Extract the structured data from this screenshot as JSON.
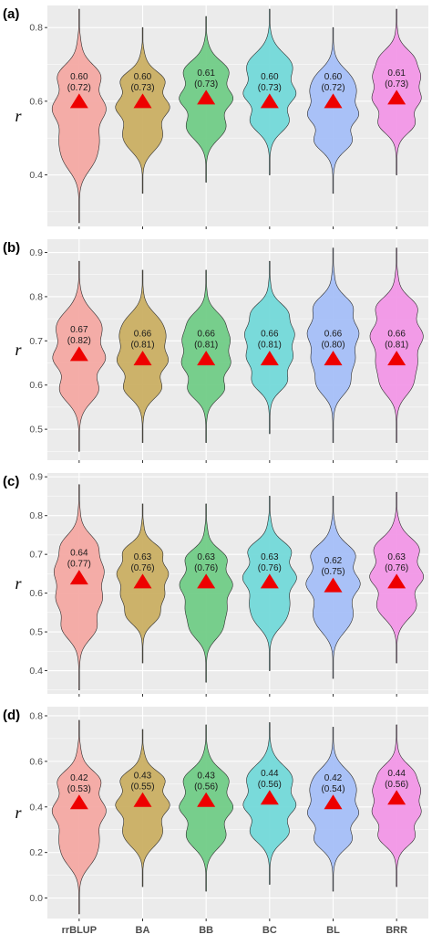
{
  "chart_data": [
    {
      "type": "violin",
      "panel_label": "(a)",
      "ylabel": "r",
      "yticks": [
        "0.4",
        "0.6",
        "0.8"
      ],
      "ylim": [
        0.26,
        0.86
      ],
      "categories": [
        "rrBLUP",
        "BA",
        "BB",
        "BC",
        "BL",
        "BRR"
      ],
      "means": [
        0.6,
        0.6,
        0.61,
        0.6,
        0.6,
        0.61
      ],
      "labels_top": [
        "0.60",
        "0.60",
        "0.61",
        "0.60",
        "0.60",
        "0.61"
      ],
      "labels_bottom": [
        "(0.72)",
        "(0.73)",
        "(0.73)",
        "(0.73)",
        "(0.72)",
        "(0.73)"
      ],
      "ranges": [
        [
          0.27,
          0.85
        ],
        [
          0.35,
          0.8
        ],
        [
          0.38,
          0.83
        ],
        [
          0.4,
          0.85
        ],
        [
          0.35,
          0.8
        ],
        [
          0.4,
          0.85
        ]
      ]
    },
    {
      "type": "violin",
      "panel_label": "(b)",
      "ylabel": "r",
      "yticks": [
        "0.5",
        "0.6",
        "0.7",
        "0.8",
        "0.9"
      ],
      "ylim": [
        0.43,
        0.93
      ],
      "categories": [
        "rrBLUP",
        "BA",
        "BB",
        "BC",
        "BL",
        "BRR"
      ],
      "means": [
        0.67,
        0.66,
        0.66,
        0.66,
        0.66,
        0.66
      ],
      "labels_top": [
        "0.67",
        "0.66",
        "0.66",
        "0.66",
        "0.66",
        "0.66"
      ],
      "labels_bottom": [
        "(0.82)",
        "(0.81)",
        "(0.81)",
        "(0.81)",
        "(0.80)",
        "(0.81)"
      ],
      "ranges": [
        [
          0.45,
          0.88
        ],
        [
          0.47,
          0.86
        ],
        [
          0.47,
          0.86
        ],
        [
          0.49,
          0.88
        ],
        [
          0.47,
          0.91
        ],
        [
          0.47,
          0.91
        ]
      ]
    },
    {
      "type": "violin",
      "panel_label": "(c)",
      "ylabel": "r",
      "yticks": [
        "0.4",
        "0.5",
        "0.6",
        "0.7",
        "0.8",
        "0.9"
      ],
      "ylim": [
        0.34,
        0.91
      ],
      "categories": [
        "rrBLUP",
        "BA",
        "BB",
        "BC",
        "BL",
        "BRR"
      ],
      "means": [
        0.64,
        0.63,
        0.63,
        0.63,
        0.62,
        0.63
      ],
      "labels_top": [
        "0.64",
        "0.63",
        "0.63",
        "0.63",
        "0.62",
        "0.63"
      ],
      "labels_bottom": [
        "(0.77)",
        "(0.76)",
        "(0.76)",
        "(0.76)",
        "(0.75)",
        "(0.76)"
      ],
      "ranges": [
        [
          0.35,
          0.88
        ],
        [
          0.42,
          0.83
        ],
        [
          0.37,
          0.83
        ],
        [
          0.4,
          0.85
        ],
        [
          0.38,
          0.85
        ],
        [
          0.42,
          0.86
        ]
      ]
    },
    {
      "type": "violin",
      "panel_label": "(d)",
      "ylabel": "r",
      "yticks": [
        "0.0",
        "0.2",
        "0.4",
        "0.6",
        "0.8"
      ],
      "ylim": [
        -0.09,
        0.84
      ],
      "categories": [
        "rrBLUP",
        "BA",
        "BB",
        "BC",
        "BL",
        "BRR"
      ],
      "means": [
        0.42,
        0.43,
        0.43,
        0.44,
        0.42,
        0.44
      ],
      "labels_top": [
        "0.42",
        "0.43",
        "0.43",
        "0.44",
        "0.42",
        "0.44"
      ],
      "labels_bottom": [
        "(0.53)",
        "(0.55)",
        "(0.56)",
        "(0.56)",
        "(0.54)",
        "(0.56)"
      ],
      "ranges": [
        [
          -0.07,
          0.78
        ],
        [
          0.05,
          0.74
        ],
        [
          0.03,
          0.76
        ],
        [
          0.06,
          0.77
        ],
        [
          0.03,
          0.75
        ],
        [
          0.05,
          0.76
        ]
      ]
    }
  ],
  "colors": [
    "#f4a6a1",
    "#c9ad5e",
    "#6ccb83",
    "#6fd8d8",
    "#a3bdf7",
    "#f294e6"
  ],
  "mean_marker_color": "#ee0000",
  "panel_background": "#ebebeb",
  "grid_color": "#ffffff"
}
